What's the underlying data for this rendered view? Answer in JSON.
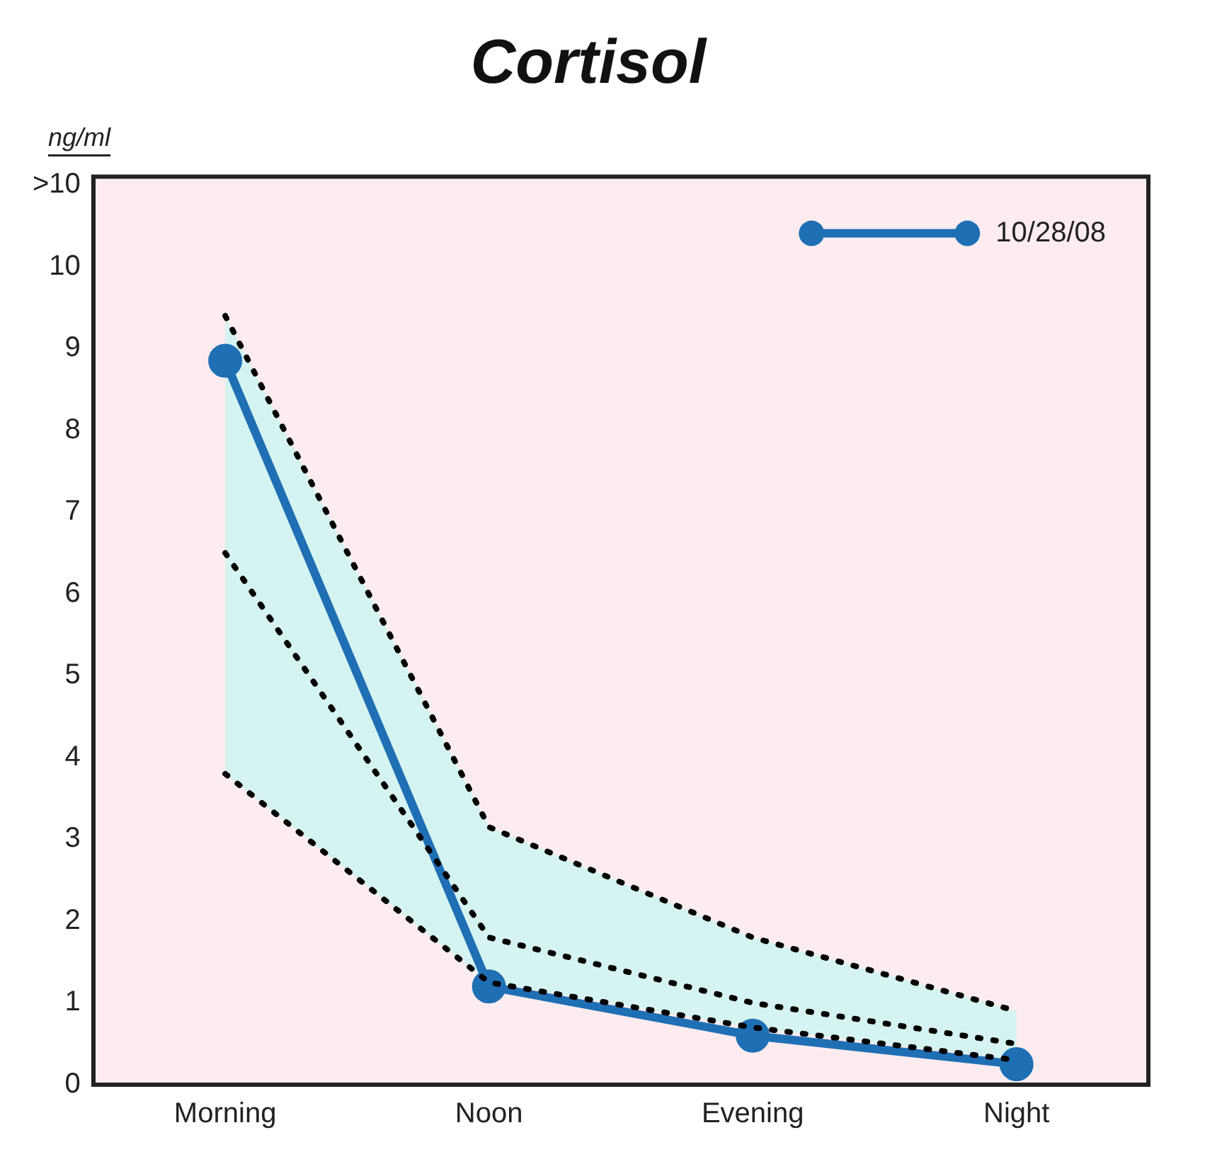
{
  "chart_data": {
    "type": "line",
    "title": "Cortisol",
    "ylabel": "ng/ml",
    "categories": [
      "Morning",
      "Noon",
      "Evening",
      "Night"
    ],
    "series": [
      {
        "color": "#000000",
        "line_style": "dotted",
        "marker": "none",
        "values": [
          9.4,
          3.15,
          1.8,
          0.9
        ]
      },
      {
        "color": "#000000",
        "line_style": "dotted",
        "marker": "none",
        "values": [
          6.5,
          1.8,
          1.0,
          0.5
        ],
        "lower": [
          3.8,
          1.25,
          0.7,
          0.3
        ],
        "upper": [
          9.4,
          3.15,
          1.8,
          0.9
        ]
      },
      {
        "color": "#000000",
        "line_style": "dotted",
        "marker": "none",
        "values": [
          3.8,
          1.25,
          0.7,
          0.3
        ]
      },
      {
        "name": "10/28/08",
        "color": "#1f6fb5",
        "line_style": "solid",
        "marker": "circle",
        "values": [
          8.85,
          1.2,
          0.6,
          0.25
        ]
      }
    ],
    "ylim": [
      0,
      11.1
    ],
    "yticks": [
      0,
      1,
      2,
      3,
      4,
      5,
      6,
      7,
      8,
      9,
      10,
      {
        "value": 11,
        "label": ">10"
      }
    ],
    "grid": false,
    "legend": "top right"
  }
}
